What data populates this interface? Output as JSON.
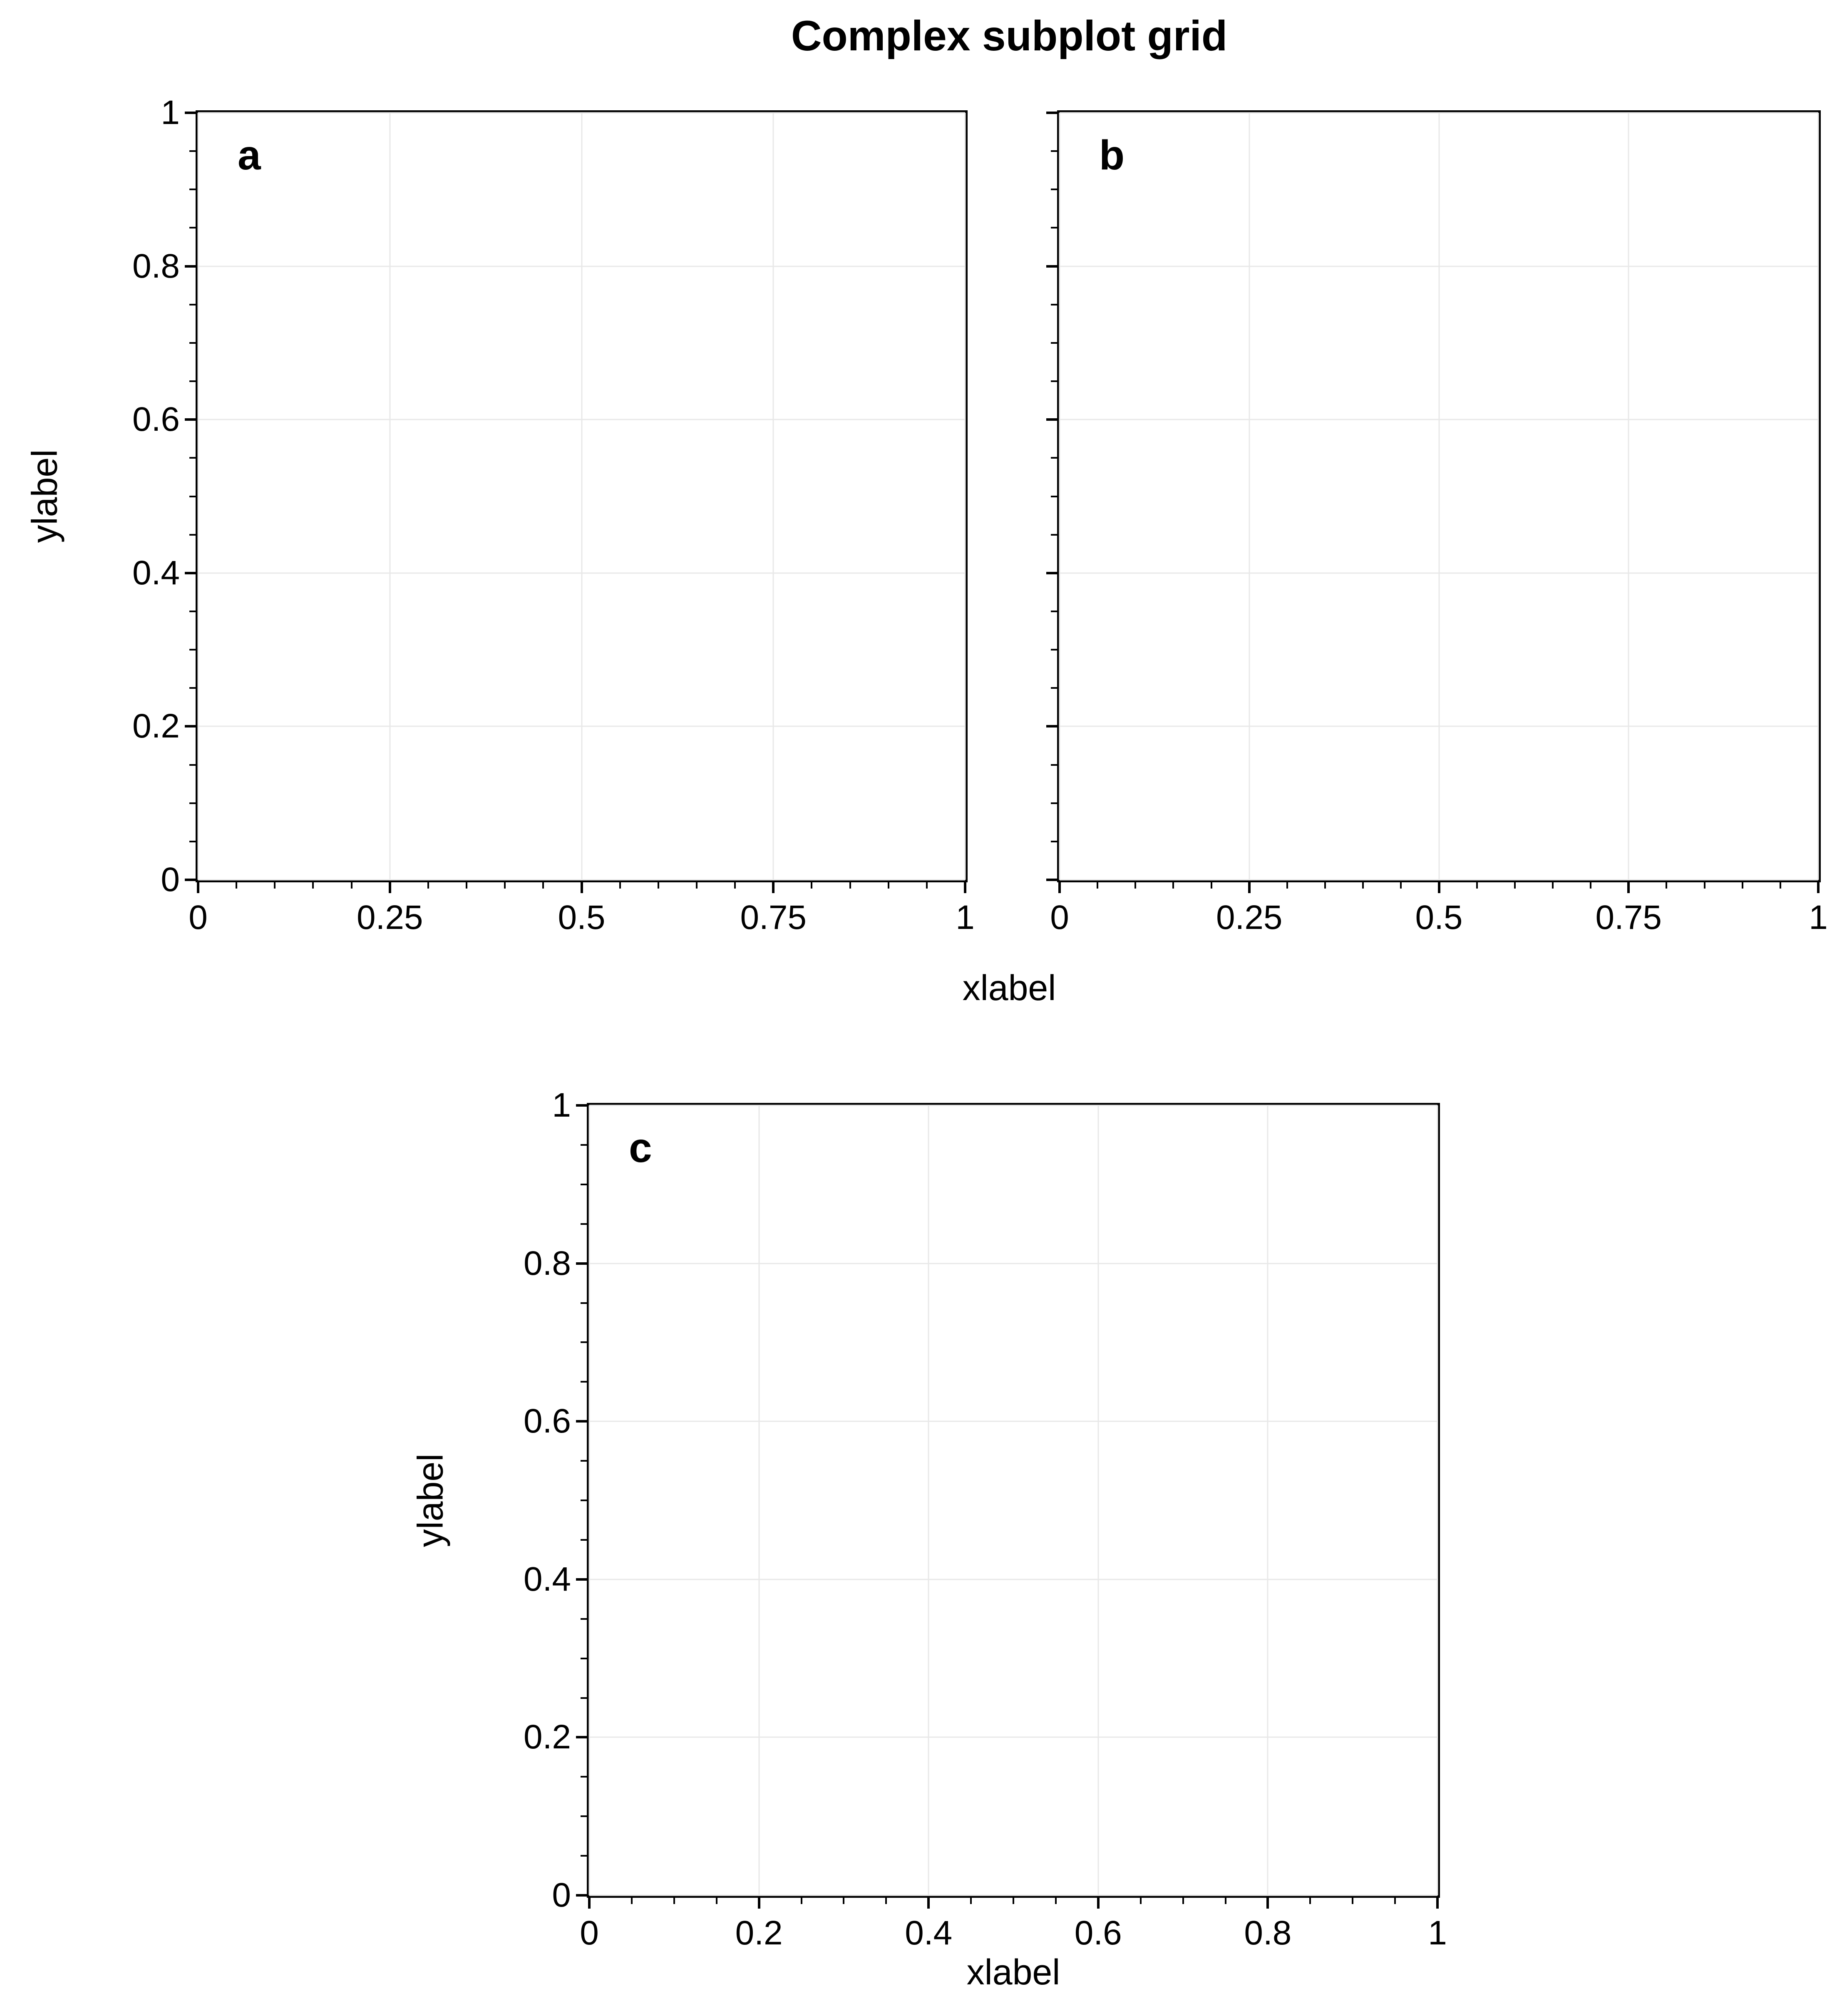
{
  "title": "Complex subplot grid",
  "top_row_xlabel": "xlabel",
  "colors": {
    "background": "#ffffff",
    "spine": "#000000",
    "grid": "#e8e8e8",
    "text": "#000000"
  },
  "chart_data": [
    {
      "panel": "a",
      "type": "empty-axes",
      "xlim": [
        0,
        1
      ],
      "ylim": [
        0,
        1
      ],
      "xticks": [
        0,
        0.25,
        0.5,
        0.75,
        1
      ],
      "xticklabels": [
        "0",
        "0.25",
        "0.5",
        "0.75",
        "1"
      ],
      "yticks": [
        0,
        0.2,
        0.4,
        0.6,
        0.8,
        1
      ],
      "yticklabels": [
        "0",
        "0.2",
        "0.4",
        "0.6",
        "0.8",
        "1"
      ],
      "minor_tick_step": 0.05,
      "xlabel": "xlabel",
      "xlabel_shared": true,
      "ylabel": "ylabel",
      "grid": true,
      "series": []
    },
    {
      "panel": "b",
      "type": "empty-axes",
      "xlim": [
        0,
        1
      ],
      "ylim": [
        0,
        1
      ],
      "xticks": [
        0,
        0.25,
        0.5,
        0.75,
        1
      ],
      "xticklabels": [
        "0",
        "0.25",
        "0.5",
        "0.75",
        "1"
      ],
      "yticks": [
        0,
        0.2,
        0.4,
        0.6,
        0.8,
        1
      ],
      "yticklabels": [],
      "minor_tick_step": 0.05,
      "xlabel": "xlabel",
      "xlabel_shared": true,
      "ylabel": "",
      "grid": true,
      "series": []
    },
    {
      "panel": "c",
      "type": "empty-axes",
      "xlim": [
        0,
        1
      ],
      "ylim": [
        0,
        1
      ],
      "xticks": [
        0,
        0.2,
        0.4,
        0.6,
        0.8,
        1
      ],
      "xticklabels": [
        "0",
        "0.2",
        "0.4",
        "0.6",
        "0.8",
        "1"
      ],
      "yticks": [
        0,
        0.2,
        0.4,
        0.6,
        0.8,
        1
      ],
      "yticklabels": [
        "0",
        "0.2",
        "0.4",
        "0.6",
        "0.8",
        "1"
      ],
      "minor_tick_step": 0.05,
      "xlabel": "xlabel",
      "xlabel_shared": false,
      "ylabel": "ylabel",
      "grid": true,
      "series": []
    }
  ]
}
